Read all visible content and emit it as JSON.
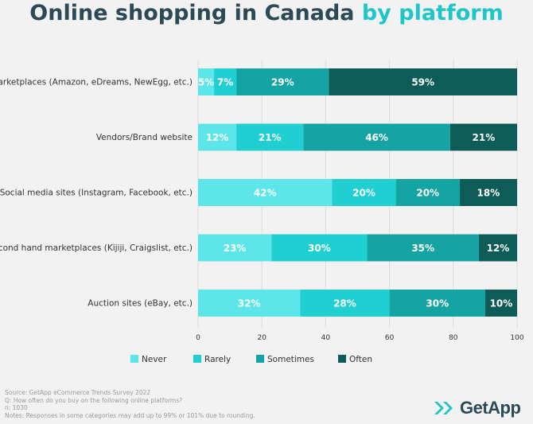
{
  "title": {
    "main": "Online shopping in Canada",
    "accent": "by platform"
  },
  "chart_data": {
    "type": "bar",
    "orientation": "horizontal",
    "stacked": true,
    "categories": [
      "Marketplaces (Amazon, eDreams, NewEgg, etc.)",
      "Vendors/Brand website",
      "Social media sites (Instagram, Facebook, etc.)",
      "Second hand marketplaces (Kijiji, Craigslist, etc.)",
      "Auction sites (eBay, etc.)"
    ],
    "series": [
      {
        "name": "Never",
        "color": "#5de6ea",
        "values": [
          5,
          12,
          42,
          23,
          32
        ],
        "labels": [
          "5%",
          "12%",
          "42%",
          "23%",
          "32%"
        ]
      },
      {
        "name": "Rarely",
        "color": "#1fcfd2",
        "values": [
          7,
          21,
          20,
          30,
          28
        ],
        "labels": [
          "7%",
          "21%",
          "20%",
          "30%",
          "28%"
        ]
      },
      {
        "name": "Sometimes",
        "color": "#13a4a3",
        "values": [
          29,
          46,
          20,
          35,
          30
        ],
        "labels": [
          "29%",
          "46%",
          "20%",
          "35%",
          "30%"
        ]
      },
      {
        "name": "Often",
        "color": "#0d5c58",
        "values": [
          59,
          21,
          18,
          12,
          10
        ],
        "labels": [
          "59%",
          "21%",
          "18%",
          "12%",
          "10%"
        ]
      }
    ],
    "xlim": [
      0,
      100
    ],
    "xticks": [
      "0",
      "20",
      "40",
      "60",
      "80",
      "100"
    ],
    "legend": "bottom"
  },
  "notes": [
    "Source: GetApp eCommerce Trends Survey 2022",
    "Q: How often do you buy on the following online platforms?",
    "n: 1030",
    "Notes: Responses in some categories may add up to 99% or 101% due to rounding."
  ],
  "brand": {
    "name": "GetApp",
    "color": "#1fc6c9"
  }
}
